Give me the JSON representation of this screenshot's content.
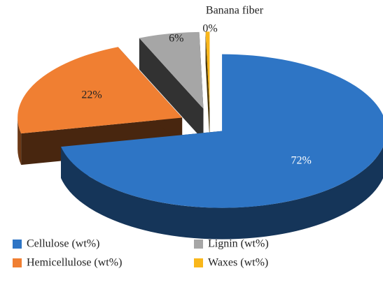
{
  "chart_data": {
    "type": "pie",
    "title": "Banana fiber",
    "categories": [
      "Cellulose (wt%)",
      "Hemicellulose (wt%)",
      "Lignin (wt%)",
      "Waxes (wt%)"
    ],
    "values": [
      72,
      22,
      6,
      0.4
    ],
    "value_labels": [
      "72%",
      "22%",
      "6%",
      "0%"
    ],
    "colors": [
      "#2e75c5",
      "#f07f32",
      "#a6a6a6",
      "#f9b71b"
    ],
    "legend": "bottom"
  }
}
